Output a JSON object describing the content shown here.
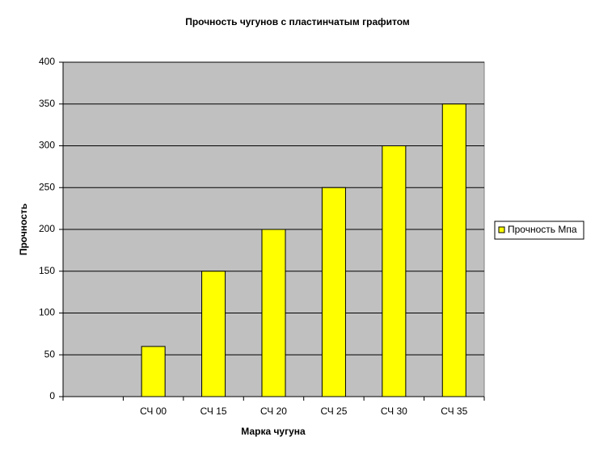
{
  "chart_data": {
    "type": "bar",
    "title": "Прочность чугунов с пластинчатым графитом",
    "x_label": "Марка чугуна",
    "y_label": "Прочность",
    "categories": [
      null,
      "СЧ 00",
      "СЧ 15",
      "СЧ 20",
      "СЧ 25",
      "СЧ 30",
      "СЧ 35"
    ],
    "series": [
      {
        "name": "Прочность Мпа",
        "color": "#ffff00",
        "values": [
          null,
          60,
          150,
          200,
          250,
          300,
          350
        ]
      }
    ],
    "ylim": [
      0,
      400
    ],
    "yticks": [
      0,
      50,
      100,
      150,
      200,
      250,
      300,
      350,
      400
    ],
    "grid": true,
    "legend": "right"
  }
}
